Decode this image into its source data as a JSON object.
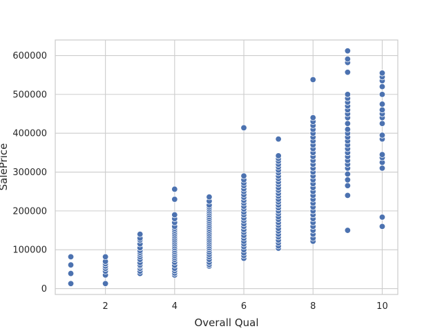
{
  "chart_data": {
    "type": "scatter",
    "title": "",
    "xlabel": "Overall Qual",
    "ylabel": "SalePrice",
    "xlim": [
      0.55,
      10.45
    ],
    "ylim": [
      -15000,
      640000
    ],
    "xticks": [
      2,
      4,
      6,
      8,
      10
    ],
    "yticks": [
      0,
      100000,
      200000,
      300000,
      400000,
      500000,
      600000
    ],
    "grid": true,
    "legend": "none",
    "colors": {
      "point": "#4c72b0",
      "point_edge": "#ffffff",
      "grid": "#cccccc",
      "axes_edge": "#cccccc",
      "background": "#ffffff"
    },
    "points_by_x": [
      {
        "x": 1,
        "y": [
          13000,
          39000,
          61000,
          82000
        ]
      },
      {
        "x": 2,
        "y": [
          13000,
          35000,
          45000,
          52000,
          58000,
          64000,
          70000,
          82000
        ]
      },
      {
        "x": 3,
        "y": [
          39000,
          45000,
          52000,
          58000,
          61000,
          67000,
          75000,
          82000,
          88000,
          93000,
          98000,
          105000,
          115000,
          125000,
          130000,
          140000
        ]
      },
      {
        "x": 4,
        "y": [
          35000,
          40000,
          46000,
          52000,
          60000,
          68000,
          75000,
          80000,
          85000,
          90000,
          95000,
          100000,
          105000,
          110000,
          115000,
          120000,
          125000,
          130000,
          135000,
          140000,
          145000,
          150000,
          155000,
          160000,
          170000,
          180000,
          190000,
          230000,
          256000
        ]
      },
      {
        "x": 5,
        "y": [
          58000,
          62000,
          68000,
          75000,
          82000,
          88000,
          94000,
          100000,
          105000,
          110000,
          115000,
          120000,
          125000,
          130000,
          135000,
          140000,
          145000,
          150000,
          155000,
          160000,
          165000,
          170000,
          175000,
          180000,
          185000,
          190000,
          195000,
          200000,
          205000,
          210000,
          215000,
          225000,
          236000
        ]
      },
      {
        "x": 6,
        "y": [
          78000,
          85000,
          92000,
          100000,
          108000,
          115000,
          122000,
          130000,
          137000,
          145000,
          152000,
          160000,
          167000,
          175000,
          182000,
          190000,
          197000,
          205000,
          212000,
          220000,
          227000,
          235000,
          242000,
          250000,
          257000,
          265000,
          272000,
          280000,
          290000,
          414000
        ]
      },
      {
        "x": 7,
        "y": [
          104000,
          110000,
          118000,
          125000,
          133000,
          140000,
          148000,
          155000,
          163000,
          170000,
          178000,
          185000,
          193000,
          200000,
          208000,
          215000,
          223000,
          230000,
          238000,
          245000,
          253000,
          260000,
          268000,
          275000,
          283000,
          290000,
          298000,
          305000,
          313000,
          320000,
          328000,
          335000,
          342000,
          385000
        ]
      },
      {
        "x": 8,
        "y": [
          122000,
          130000,
          140000,
          150000,
          160000,
          170000,
          180000,
          190000,
          200000,
          210000,
          220000,
          230000,
          240000,
          250000,
          260000,
          270000,
          280000,
          290000,
          300000,
          310000,
          320000,
          330000,
          340000,
          350000,
          360000,
          370000,
          380000,
          390000,
          400000,
          410000,
          420000,
          430000,
          440000,
          538000
        ]
      },
      {
        "x": 9,
        "y": [
          150000,
          240000,
          265000,
          280000,
          295000,
          310000,
          320000,
          330000,
          340000,
          350000,
          360000,
          370000,
          380000,
          390000,
          400000,
          410000,
          425000,
          440000,
          450000,
          460000,
          470000,
          480000,
          490000,
          500000,
          557000,
          582000,
          591000,
          612000
        ]
      },
      {
        "x": 10,
        "y": [
          160000,
          184000,
          310000,
          325000,
          337000,
          345000,
          385000,
          395000,
          425000,
          440000,
          450000,
          460000,
          475000,
          500000,
          520000,
          535000,
          545000,
          555000
        ]
      }
    ]
  }
}
